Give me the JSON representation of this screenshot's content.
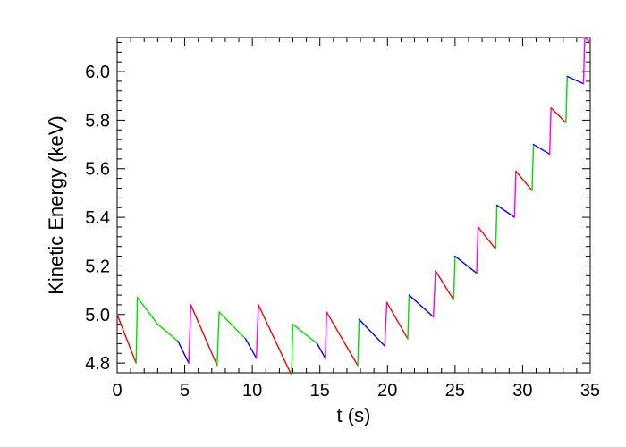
{
  "chart_data": {
    "type": "line",
    "xlabel": "t (s)",
    "ylabel": "Kinetic Energy (keV)",
    "xlim": [
      0,
      35
    ],
    "ylim": [
      4.76,
      6.14
    ],
    "xticks": [
      0,
      5,
      10,
      15,
      20,
      25,
      30,
      35
    ],
    "xtick_labels": [
      "0",
      "5",
      "10",
      "15",
      "20",
      "25",
      "30",
      "35"
    ],
    "yticks": [
      4.8,
      5.0,
      5.2,
      5.4,
      5.6,
      5.8,
      6.0
    ],
    "ytick_labels": [
      "4.8",
      "5.0",
      "5.2",
      "5.4",
      "5.6",
      "5.8",
      "6.0"
    ],
    "grid": false,
    "legend": "none",
    "segment_colors": {
      "magenta": "#ff00ff",
      "green": "#00dd00",
      "blue": "#0000ff",
      "red": "#ff0000"
    },
    "series": [
      {
        "values": [
          {
            "x": 0.0,
            "y": 5.0,
            "c": "magenta"
          },
          {
            "x": 1.4,
            "y": 4.8,
            "c": "red"
          },
          {
            "x": 1.5,
            "y": 5.07,
            "c": "green"
          },
          {
            "x": 3.0,
            "y": 4.96,
            "c": "green"
          },
          {
            "x": 4.5,
            "y": 4.89,
            "c": "green"
          },
          {
            "x": 5.3,
            "y": 4.8,
            "c": "blue"
          },
          {
            "x": 5.45,
            "y": 5.04,
            "c": "magenta"
          },
          {
            "x": 7.4,
            "y": 4.79,
            "c": "red"
          },
          {
            "x": 7.55,
            "y": 5.01,
            "c": "green"
          },
          {
            "x": 9.5,
            "y": 4.9,
            "c": "green"
          },
          {
            "x": 10.3,
            "y": 4.82,
            "c": "blue"
          },
          {
            "x": 10.45,
            "y": 5.04,
            "c": "magenta"
          },
          {
            "x": 12.9,
            "y": 4.75,
            "c": "red"
          },
          {
            "x": 13.0,
            "y": 4.96,
            "c": "green"
          },
          {
            "x": 14.8,
            "y": 4.88,
            "c": "green"
          },
          {
            "x": 15.4,
            "y": 4.82,
            "c": "blue"
          },
          {
            "x": 15.5,
            "y": 5.01,
            "c": "magenta"
          },
          {
            "x": 17.8,
            "y": 4.79,
            "c": "red"
          },
          {
            "x": 17.9,
            "y": 4.98,
            "c": "green"
          },
          {
            "x": 19.8,
            "y": 4.87,
            "c": "blue"
          },
          {
            "x": 19.95,
            "y": 5.05,
            "c": "magenta"
          },
          {
            "x": 21.5,
            "y": 4.9,
            "c": "red"
          },
          {
            "x": 21.6,
            "y": 5.08,
            "c": "green"
          },
          {
            "x": 23.4,
            "y": 4.99,
            "c": "blue"
          },
          {
            "x": 23.55,
            "y": 5.18,
            "c": "magenta"
          },
          {
            "x": 24.9,
            "y": 5.06,
            "c": "red"
          },
          {
            "x": 25.0,
            "y": 5.24,
            "c": "green"
          },
          {
            "x": 26.6,
            "y": 5.17,
            "c": "blue"
          },
          {
            "x": 26.7,
            "y": 5.36,
            "c": "magenta"
          },
          {
            "x": 28.0,
            "y": 5.27,
            "c": "red"
          },
          {
            "x": 28.1,
            "y": 5.45,
            "c": "green"
          },
          {
            "x": 29.4,
            "y": 5.4,
            "c": "blue"
          },
          {
            "x": 29.5,
            "y": 5.59,
            "c": "magenta"
          },
          {
            "x": 30.7,
            "y": 5.51,
            "c": "red"
          },
          {
            "x": 30.8,
            "y": 5.7,
            "c": "green"
          },
          {
            "x": 32.0,
            "y": 5.66,
            "c": "blue"
          },
          {
            "x": 32.1,
            "y": 5.85,
            "c": "magenta"
          },
          {
            "x": 33.2,
            "y": 5.79,
            "c": "red"
          },
          {
            "x": 33.3,
            "y": 5.98,
            "c": "green"
          },
          {
            "x": 34.5,
            "y": 5.95,
            "c": "blue"
          },
          {
            "x": 34.6,
            "y": 6.14,
            "c": "magenta"
          },
          {
            "x": 35.0,
            "y": 6.12,
            "c": "magenta"
          }
        ]
      }
    ]
  }
}
